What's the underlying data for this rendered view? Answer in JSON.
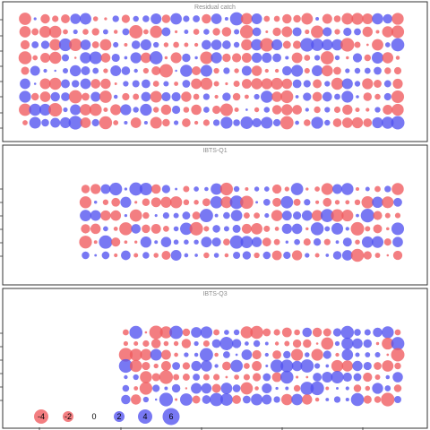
{
  "chart_data": {
    "type": "scatter",
    "subtype": "bubble-residuals",
    "colors": {
      "positive": "#5252f0",
      "negative": "#f05a5e",
      "frame": "#333333",
      "title": "#8c8c8c"
    },
    "panels": [
      {
        "title": "Residual catch",
        "year_range": [
          1983,
          2020
        ],
        "ages": [
          1,
          2,
          3,
          4,
          5,
          6,
          7,
          8,
          9
        ]
      },
      {
        "title": "IBTS-Q1",
        "year_range": [
          1989,
          2020
        ],
        "ages": [
          1,
          2,
          3,
          4,
          5,
          6
        ]
      },
      {
        "title": "IBTS-Q3",
        "year_range": [
          1993,
          2020
        ],
        "ages": [
          1,
          2,
          3,
          4,
          5,
          6,
          7
        ]
      }
    ],
    "x_range": [
      1982,
      2022
    ],
    "legend": {
      "values": [
        -4,
        -2,
        0,
        2,
        4,
        6
      ],
      "labels": [
        "-4",
        "-2",
        "0",
        "2",
        "4",
        "6"
      ]
    }
  }
}
